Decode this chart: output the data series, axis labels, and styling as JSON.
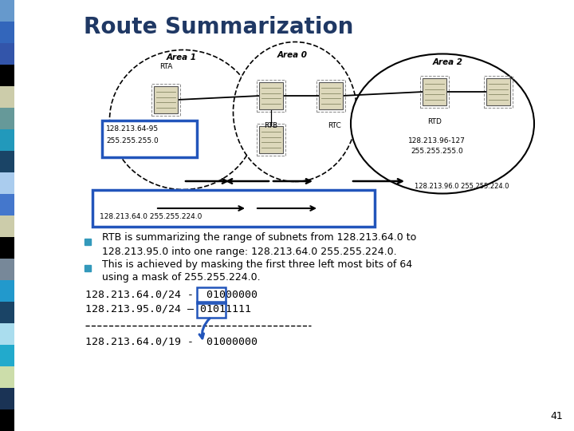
{
  "title": "Route Summarization",
  "title_color": "#1F3864",
  "title_fontsize": 20,
  "background_color": "#ffffff",
  "bullet1_line1": "RTB is summarizing the range of subnets from 128.213.64.0 to",
  "bullet1_line2": "128.213.95.0 into one range: 128.213.64.0 255.255.224.0.",
  "bullet2_line1": "This is achieved by masking the first three left most bits of 64",
  "bullet2_line2": "using a mask of 255.255.224.0.",
  "code_line1": "128.213.64.0/24 -  01000000",
  "code_line2": "128.213.95.0/24 – 01011111",
  "code_line3": "128.213.64.0/19 -  01000000",
  "page_num": "41",
  "sidebar_colors": [
    "#6699cc",
    "#3366bb",
    "#3355aa",
    "#000000",
    "#ccccaa",
    "#669999",
    "#2299bb",
    "#1a4466",
    "#aaccee",
    "#4477cc",
    "#ccccaa",
    "#000000",
    "#778899",
    "#2299cc",
    "#1a4466",
    "#aaddee",
    "#22aacc",
    "#ccddaa",
    "#1a3355",
    "#000000"
  ],
  "diagram": {
    "area1_label": "Area 1",
    "area0_label": "Area 0",
    "area2_label": "Area 2",
    "rta_label": "RTA",
    "rtb_label": "RTB",
    "rtc_label": "RTC",
    "rtd_label": "RTD",
    "subnet_area1_line1": "128.213.64-95",
    "subnet_area1_line2": "255.255.255.0",
    "subnet_area2_line1": "128.213.96-127",
    "subnet_area2_line2": "255.255.255.0",
    "arrow_label_top": "128.213.96.0 255.255.224.0",
    "arrow_label_box": "128.213.64.0 255.255.224.0"
  }
}
